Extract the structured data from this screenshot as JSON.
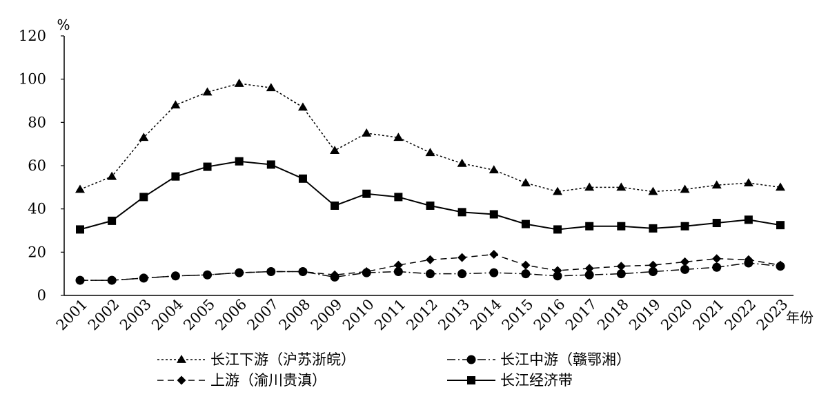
{
  "chart_data": {
    "type": "line",
    "title": "",
    "ylabel": "%",
    "xlabel": "年份",
    "ylim": [
      0,
      120
    ],
    "yticks": [
      0,
      20,
      40,
      60,
      80,
      100,
      120
    ],
    "grid": false,
    "legend_position": "bottom",
    "categories": [
      "2001",
      "2002",
      "2003",
      "2004",
      "2005",
      "2006",
      "2007",
      "2008",
      "2009",
      "2010",
      "2011",
      "2012",
      "2013",
      "2014",
      "2015",
      "2016",
      "2017",
      "2018",
      "2019",
      "2020",
      "2021",
      "2022",
      "2023"
    ],
    "series": [
      {
        "name": "长江下游（沪苏浙皖）",
        "style": "dotted",
        "marker": "triangle",
        "values": [
          49,
          55,
          73,
          88,
          94,
          98,
          96,
          87,
          67,
          75,
          73,
          66,
          61,
          58,
          52,
          48,
          50,
          50,
          48,
          49,
          51,
          52,
          50
        ]
      },
      {
        "name": "长江中游（赣鄂湘）",
        "style": "dash-dot",
        "marker": "circle",
        "values": [
          7,
          7,
          8,
          9,
          9.5,
          10.5,
          11,
          11,
          8.5,
          10.5,
          11,
          10,
          10,
          10.5,
          10,
          9,
          9.5,
          10,
          11,
          12,
          13,
          15,
          13.5
        ]
      },
      {
        "name": "上游（渝川贵滇）",
        "style": "dashed",
        "marker": "diamond",
        "values": [
          7,
          7,
          8,
          9,
          9.5,
          10.5,
          11,
          11,
          9.5,
          11,
          14,
          16.5,
          17.5,
          19,
          14,
          11.5,
          12.5,
          13.5,
          14,
          15.5,
          17,
          16.5,
          14
        ]
      },
      {
        "name": "长江经济带",
        "style": "solid",
        "marker": "square",
        "values": [
          30.5,
          34.5,
          45.5,
          55,
          59.5,
          62,
          60.5,
          54,
          41.5,
          47,
          45.5,
          41.5,
          38.5,
          37.5,
          33,
          30.5,
          32,
          32,
          31,
          32,
          33.5,
          35,
          32.5
        ]
      }
    ]
  }
}
